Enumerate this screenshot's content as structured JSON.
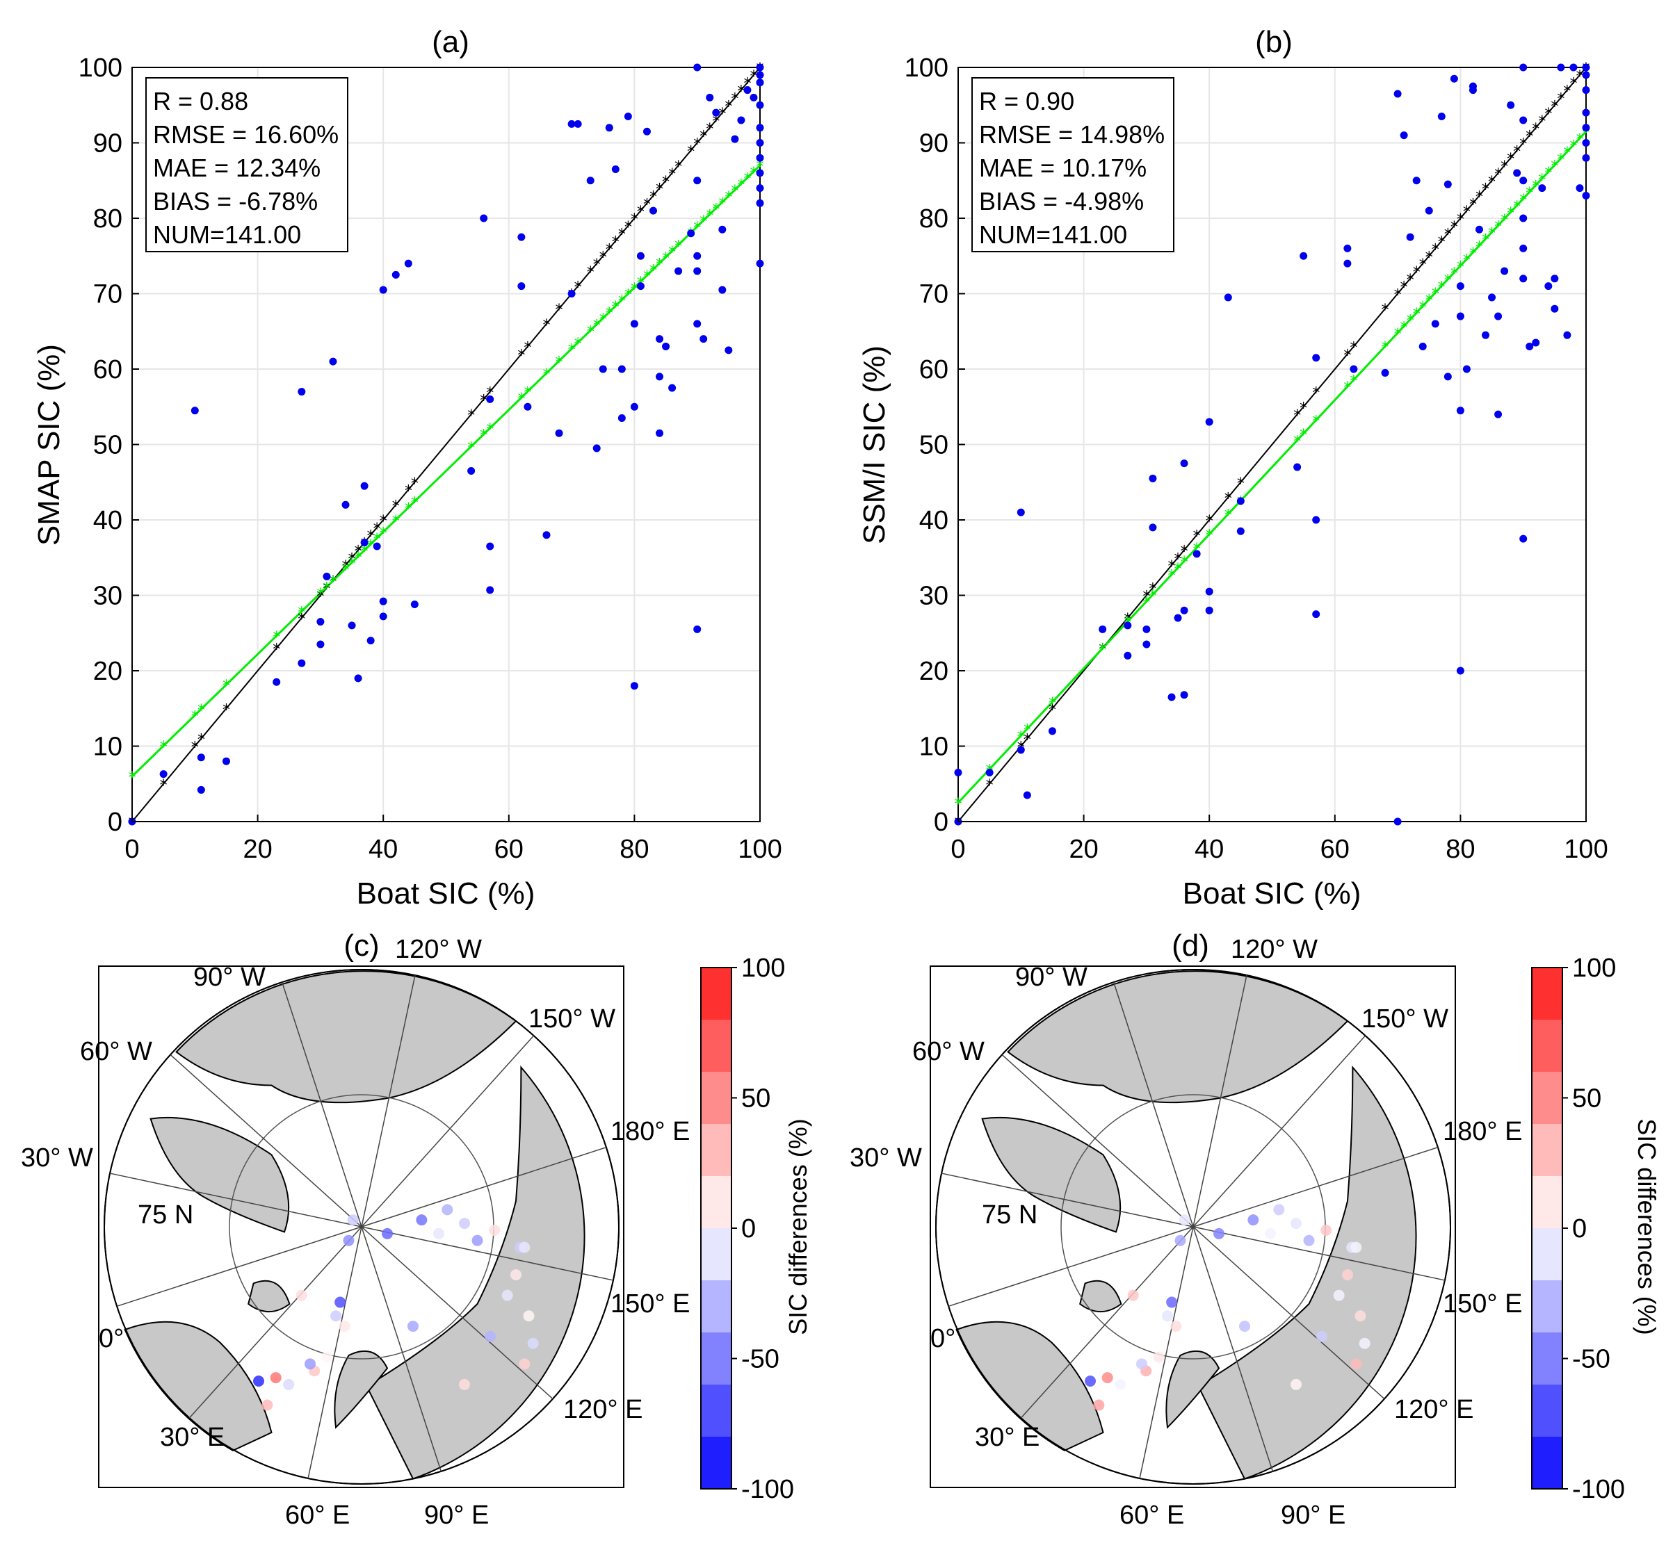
{
  "chart_data": [
    {
      "panel": "(a)",
      "type": "scatter",
      "title": "(a)",
      "xlabel": "Boat SIC (%)",
      "ylabel": "SMAP SIC (%)",
      "xlim": [
        0,
        100
      ],
      "ylim": [
        0,
        100
      ],
      "xticks": [
        0,
        20,
        40,
        60,
        80,
        100
      ],
      "yticks": [
        0,
        10,
        20,
        30,
        40,
        50,
        60,
        70,
        80,
        90,
        100
      ],
      "grid": true,
      "stats": [
        "R = 0.88",
        "RMSE = 16.60%",
        "MAE = 12.34%",
        "BIAS = -6.78%",
        "NUM=141.00"
      ],
      "legend_placement": "top-left",
      "fit_line": {
        "slope": 0.81,
        "intercept": 6.0,
        "color": "#00ff00"
      },
      "identity_line": {
        "slope": 1,
        "intercept": 0,
        "color": "#000000"
      },
      "points": [
        [
          0,
          0
        ],
        [
          5,
          6.3
        ],
        [
          11,
          4.2
        ],
        [
          11,
          8.5
        ],
        [
          15,
          8
        ],
        [
          10,
          54.5
        ],
        [
          23,
          18.5
        ],
        [
          27,
          21
        ],
        [
          27,
          57
        ],
        [
          30,
          23.5
        ],
        [
          30,
          26.5
        ],
        [
          31,
          32.5
        ],
        [
          32,
          61
        ],
        [
          34,
          42
        ],
        [
          35,
          26
        ],
        [
          36,
          19
        ],
        [
          37,
          44.5
        ],
        [
          37,
          37
        ],
        [
          38,
          24
        ],
        [
          39,
          36.5
        ],
        [
          40,
          70.5
        ],
        [
          40,
          29.2
        ],
        [
          40,
          27.2
        ],
        [
          42,
          72.5
        ],
        [
          44,
          74
        ],
        [
          45,
          28.8
        ],
        [
          54,
          46.5
        ],
        [
          56,
          80
        ],
        [
          57,
          36.5
        ],
        [
          57,
          30.7
        ],
        [
          57,
          56
        ],
        [
          62,
          71
        ],
        [
          62,
          77.5
        ],
        [
          63,
          55
        ],
        [
          66,
          38
        ],
        [
          68,
          51.5
        ],
        [
          70,
          92.5
        ],
        [
          70,
          70
        ],
        [
          71,
          92.5
        ],
        [
          73,
          85
        ],
        [
          74,
          49.5
        ],
        [
          75,
          60
        ],
        [
          76,
          92
        ],
        [
          77,
          86.5
        ],
        [
          78,
          53.5
        ],
        [
          78,
          60
        ],
        [
          79,
          93.5
        ],
        [
          80,
          55
        ],
        [
          80,
          66
        ],
        [
          80,
          18
        ],
        [
          81,
          75
        ],
        [
          81,
          71
        ],
        [
          82,
          91.5
        ],
        [
          83,
          81
        ],
        [
          84,
          64
        ],
        [
          84,
          51.5
        ],
        [
          84,
          59
        ],
        [
          85,
          63
        ],
        [
          86,
          57.5
        ],
        [
          87,
          73
        ],
        [
          89,
          78
        ],
        [
          90,
          100
        ],
        [
          90,
          85
        ],
        [
          90,
          75
        ],
        [
          90,
          73
        ],
        [
          90,
          66
        ],
        [
          90,
          25.5
        ],
        [
          91,
          64
        ],
        [
          92,
          96
        ],
        [
          93,
          94
        ],
        [
          94,
          70.5
        ],
        [
          94,
          78.5
        ],
        [
          95,
          62.5
        ],
        [
          96,
          90.5
        ],
        [
          97,
          93
        ],
        [
          98,
          97
        ],
        [
          99,
          96
        ],
        [
          100,
          100
        ],
        [
          100,
          99
        ],
        [
          100,
          98
        ],
        [
          100,
          95
        ],
        [
          100,
          92
        ],
        [
          100,
          90
        ],
        [
          100,
          88
        ],
        [
          100,
          86
        ],
        [
          100,
          84
        ],
        [
          100,
          82
        ],
        [
          100,
          74
        ]
      ]
    },
    {
      "panel": "(b)",
      "type": "scatter",
      "title": "(b)",
      "xlabel": "Boat SIC (%)",
      "ylabel": "SSM/I SIC (%)",
      "xlim": [
        0,
        100
      ],
      "ylim": [
        0,
        100
      ],
      "xticks": [
        0,
        20,
        40,
        60,
        80,
        100
      ],
      "yticks": [
        0,
        10,
        20,
        30,
        40,
        50,
        60,
        70,
        80,
        90,
        100
      ],
      "grid": true,
      "stats": [
        "R = 0.90",
        "RMSE = 14.98%",
        "MAE = 10.17%",
        "BIAS = -4.98%",
        "NUM=141.00"
      ],
      "legend_placement": "top-left",
      "fit_line": {
        "slope": 0.89,
        "intercept": 2.5,
        "color": "#00ff00"
      },
      "identity_line": {
        "slope": 1,
        "intercept": 0,
        "color": "#000000"
      },
      "points": [
        [
          0,
          0
        ],
        [
          0,
          6.5
        ],
        [
          5,
          6.5
        ],
        [
          10,
          41
        ],
        [
          10,
          9.5
        ],
        [
          11,
          3.5
        ],
        [
          15,
          12
        ],
        [
          23,
          25.5
        ],
        [
          27,
          22
        ],
        [
          27,
          26
        ],
        [
          30,
          25.5
        ],
        [
          30,
          23.5
        ],
        [
          31,
          39
        ],
        [
          31,
          45.5
        ],
        [
          34,
          16.5
        ],
        [
          35,
          27
        ],
        [
          36,
          16.8
        ],
        [
          36,
          28
        ],
        [
          36,
          47.5
        ],
        [
          38,
          35.5
        ],
        [
          40,
          53
        ],
        [
          40,
          30.5
        ],
        [
          40,
          28
        ],
        [
          43,
          69.5
        ],
        [
          45,
          42.5
        ],
        [
          45,
          38.5
        ],
        [
          54,
          47
        ],
        [
          55,
          75
        ],
        [
          57,
          40
        ],
        [
          57,
          27.5
        ],
        [
          57,
          61.5
        ],
        [
          62,
          76
        ],
        [
          62,
          74
        ],
        [
          63,
          60
        ],
        [
          68,
          59.5
        ],
        [
          70,
          96.5
        ],
        [
          70,
          0
        ],
        [
          71,
          91
        ],
        [
          72,
          77.5
        ],
        [
          73,
          85
        ],
        [
          74,
          63
        ],
        [
          75,
          81
        ],
        [
          76,
          66
        ],
        [
          77,
          93.5
        ],
        [
          78,
          59
        ],
        [
          78,
          84.5
        ],
        [
          79,
          98.5
        ],
        [
          80,
          54.5
        ],
        [
          80,
          20
        ],
        [
          80,
          71
        ],
        [
          80,
          67
        ],
        [
          81,
          60
        ],
        [
          82,
          97
        ],
        [
          82,
          97.5
        ],
        [
          83,
          78.5
        ],
        [
          84,
          64.5
        ],
        [
          85,
          69.5
        ],
        [
          86,
          54
        ],
        [
          86,
          67
        ],
        [
          87,
          73
        ],
        [
          88,
          95
        ],
        [
          89,
          86
        ],
        [
          90,
          100
        ],
        [
          90,
          93
        ],
        [
          90,
          85
        ],
        [
          90,
          80
        ],
        [
          90,
          76
        ],
        [
          90,
          72
        ],
        [
          90,
          37.5
        ],
        [
          91,
          63
        ],
        [
          92,
          63.5
        ],
        [
          93,
          84
        ],
        [
          94,
          71
        ],
        [
          95,
          68
        ],
        [
          95,
          72
        ],
        [
          96,
          100
        ],
        [
          97,
          64.5
        ],
        [
          98,
          100
        ],
        [
          99,
          84
        ],
        [
          100,
          100
        ],
        [
          100,
          99
        ],
        [
          100,
          97
        ],
        [
          100,
          94
        ],
        [
          100,
          92
        ],
        [
          100,
          90
        ],
        [
          100,
          88
        ],
        [
          100,
          83
        ]
      ]
    },
    {
      "panel": "(c)",
      "type": "map",
      "title": "(c)",
      "projection": "north polar stereographic",
      "latitude_circle": "75 N",
      "lon_labels": [
        "120° W",
        "150° W",
        "180° E",
        "150° E",
        "120° E",
        "90° E",
        "60° E",
        "30° E",
        "0°",
        "30° W",
        "60° W",
        "90° W"
      ],
      "colorbar": {
        "label": "SIC differences (%)",
        "min": -100,
        "max": 100,
        "ticks": [
          100,
          50,
          0,
          -50,
          -100
        ]
      },
      "points": [
        [
          -30,
          -80
        ],
        [
          -25,
          -60
        ],
        [
          -20,
          -95
        ],
        [
          -40,
          -140
        ],
        [
          -55,
          -160
        ],
        [
          -60,
          -150
        ],
        [
          -70,
          -50
        ],
        [
          -85,
          -180
        ],
        [
          -100,
          -170
        ],
        [
          -110,
          -210
        ],
        [
          -120,
          -175
        ],
        [
          60,
          -95
        ],
        [
          120,
          -180
        ],
        [
          150,
          -110
        ],
        [
          170,
          -50
        ],
        [
          180,
          -20
        ],
        [
          185,
          20
        ],
        [
          195,
          -80
        ],
        [
          200,
          -120
        ],
        [
          190,
          -150
        ],
        [
          -15,
          30
        ],
        [
          -10,
          60
        ],
        [
          30,
          40
        ],
        [
          70,
          60
        ],
        [
          90,
          40
        ],
        [
          100,
          75
        ],
        [
          120,
          55
        ],
        [
          135,
          30
        ],
        [
          155,
          45
        ],
        [
          190,
          20
        ]
      ]
    },
    {
      "panel": "(d)",
      "type": "map",
      "title": "(d)",
      "projection": "north polar stereographic",
      "latitude_circle": "75 N",
      "lon_labels": [
        "120° W",
        "150° W",
        "180° E",
        "150° E",
        "120° E",
        "90° E",
        "60° E",
        "30° E",
        "0°",
        "30° W",
        "60° W",
        "90° W"
      ],
      "colorbar": {
        "label": "SIC differences (%)",
        "min": -100,
        "max": 100,
        "ticks": [
          100,
          50,
          0,
          -50,
          -100
        ]
      },
      "points": [
        [
          -30,
          -80
        ],
        [
          -25,
          -60
        ],
        [
          -20,
          -95
        ],
        [
          -40,
          -140
        ],
        [
          -55,
          -160
        ],
        [
          -60,
          -150
        ],
        [
          -70,
          -50
        ],
        [
          -85,
          -180
        ],
        [
          -100,
          -170
        ],
        [
          -110,
          -210
        ],
        [
          -120,
          -175
        ],
        [
          60,
          -95
        ],
        [
          120,
          -180
        ],
        [
          150,
          -110
        ],
        [
          170,
          -50
        ],
        [
          180,
          -20
        ],
        [
          185,
          20
        ],
        [
          195,
          -80
        ],
        [
          200,
          -120
        ],
        [
          190,
          -150
        ],
        [
          -15,
          30
        ],
        [
          -10,
          60
        ],
        [
          30,
          40
        ],
        [
          70,
          60
        ],
        [
          90,
          40
        ],
        [
          100,
          75
        ],
        [
          120,
          55
        ],
        [
          135,
          30
        ],
        [
          155,
          45
        ],
        [
          190,
          20
        ]
      ]
    }
  ],
  "map_point_values": {
    "(c)": [
      -20,
      -70,
      10,
      5,
      25,
      -40,
      15,
      -15,
      60,
      30,
      -85,
      -35,
      15,
      -30,
      -10,
      10,
      -20,
      5,
      -15,
      20,
      -45,
      -20,
      -60,
      -55,
      -10,
      -30,
      -20,
      -40,
      15,
      -10
    ],
    "(d)": [
      -10,
      -60,
      15,
      10,
      35,
      -20,
      25,
      -5,
      50,
      40,
      -70,
      -25,
      5,
      -20,
      -5,
      20,
      -10,
      15,
      -5,
      30,
      -35,
      -10,
      -50,
      -45,
      -5,
      -20,
      -10,
      -30,
      25,
      -5
    ]
  },
  "colors": {
    "points": "#0000ee",
    "fit": "#00ee00",
    "identity": "#000000",
    "land": "#c8c8c8",
    "grid": "#e6e6e6"
  }
}
